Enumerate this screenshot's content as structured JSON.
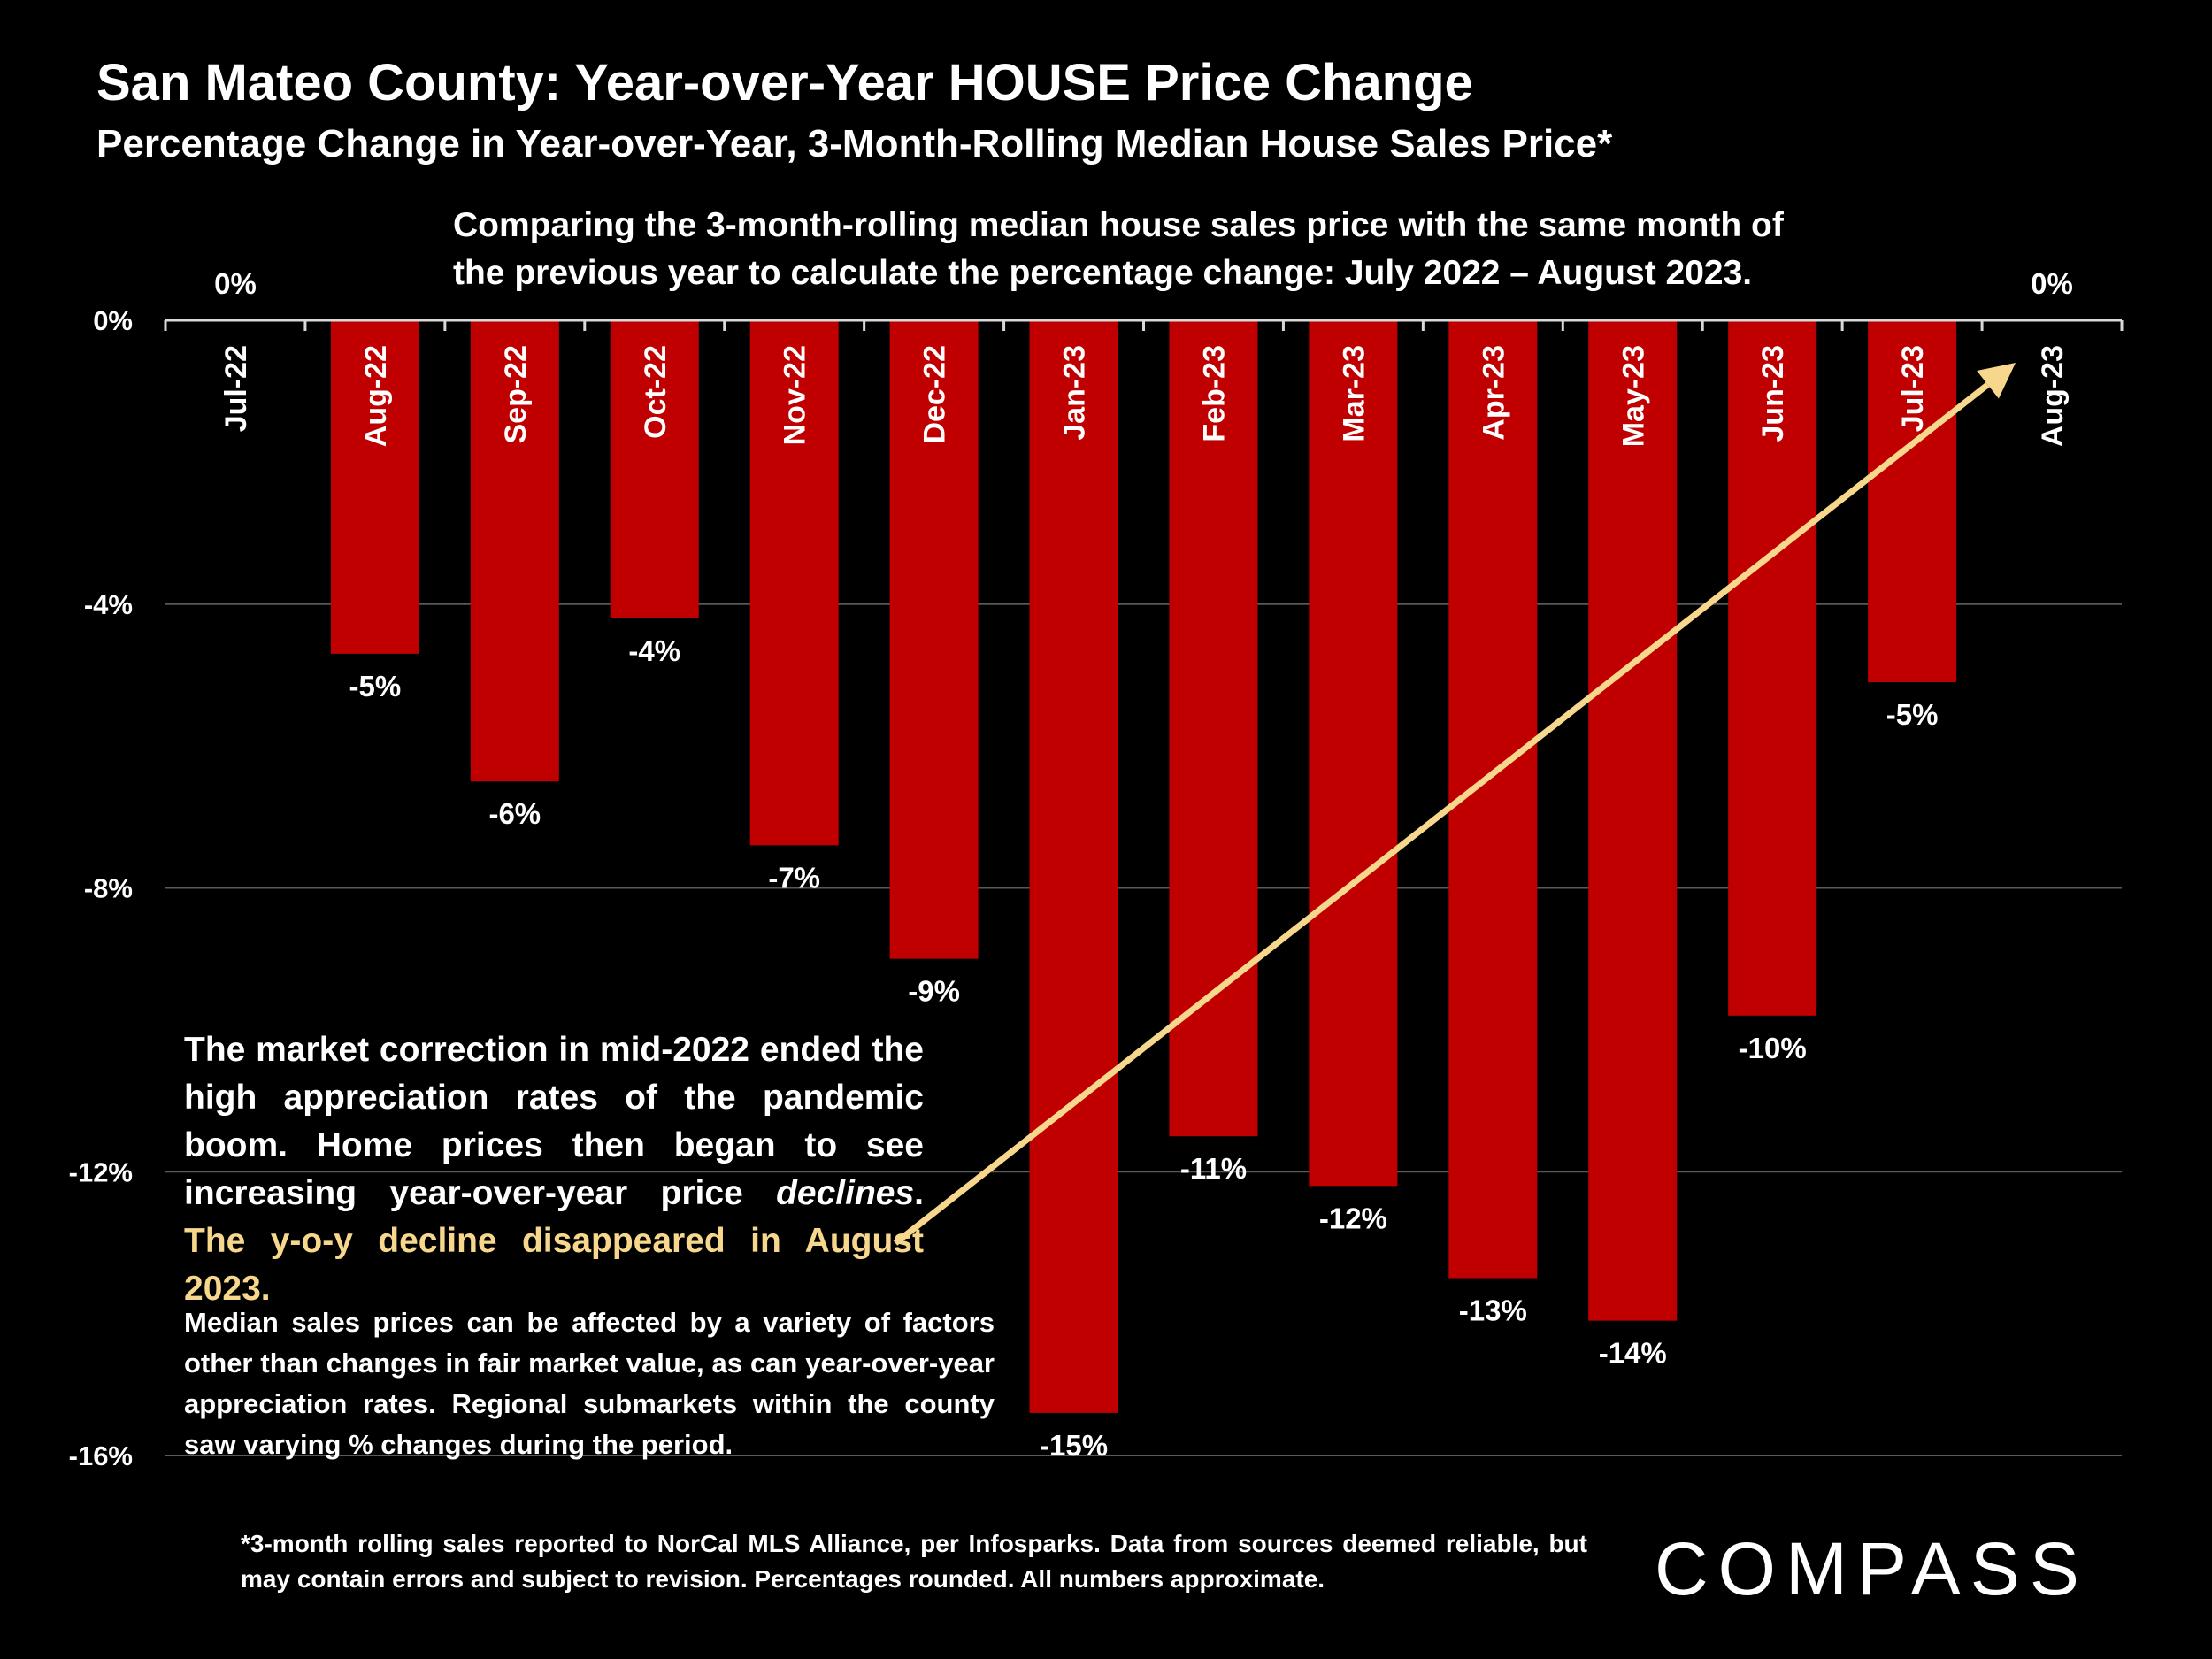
{
  "title": "San Mateo County: Year-over-Year HOUSE Price Change",
  "subtitle": "Percentage Change in Year-over-Year, 3-Month-Rolling Median House Sales Price*",
  "comparing_note": "Comparing the 3-month-rolling median house sales price with the same month of the previous year to calculate the percentage change: July 2022 – August 2023.",
  "main_note": {
    "part1": "The market correction in mid-2022 ended the high appreciation rates of the pandemic boom.  Home prices then began to see increasing year-over-year price ",
    "emphasis": "declines",
    "part2": ". ",
    "highlight": "The y-o-y decline disappeared in August 2023."
  },
  "side_note": "Median sales prices can be affected by a variety of factors other than changes in fair market value, as can year-over-year appreciation rates. Regional submarkets within the county saw varying % changes during the period.",
  "footnote": "*3-month rolling sales reported to NorCal MLS Alliance, per Infosparks. Data from sources deemed reliable, but may contain errors and subject to revision. Percentages rounded. All numbers approximate.",
  "logo": "COMPASS",
  "colors": {
    "background": "#000000",
    "bar": "#c00000",
    "arrow": "#f6d78b",
    "gridline": "#595959",
    "highlight_text": "#f6d78b"
  },
  "chart_data": {
    "type": "bar",
    "categories": [
      "Jul-22",
      "Aug-22",
      "Sep-22",
      "Oct-22",
      "Nov-22",
      "Dec-22",
      "Jan-23",
      "Feb-23",
      "Mar-23",
      "Apr-23",
      "May-23",
      "Jun-23",
      "Jul-23",
      "Aug-23"
    ],
    "values": [
      0,
      -4.7,
      -6.5,
      -4.2,
      -7.4,
      -9.0,
      -15.4,
      -11.5,
      -12.2,
      -13.5,
      -14.1,
      -9.8,
      -5.1,
      0
    ],
    "data_labels": [
      "0%",
      "-5%",
      "-6%",
      "-4%",
      "-7%",
      "-9%",
      "-15%",
      "-11%",
      "-12%",
      "-13%",
      "-14%",
      "-10%",
      "-5%",
      "0%"
    ],
    "ylim": [
      -16,
      0
    ],
    "yticks": [
      0,
      -4,
      -8,
      -12,
      -16
    ],
    "ytick_labels": [
      "0%",
      "-4%",
      "-8%",
      "-12%",
      "-16%"
    ],
    "grid": true,
    "legend": "none",
    "annotation_arrow": {
      "from_text": "The y-o-y decline disappeared in August 2023.",
      "to_category": "Aug-23"
    }
  }
}
